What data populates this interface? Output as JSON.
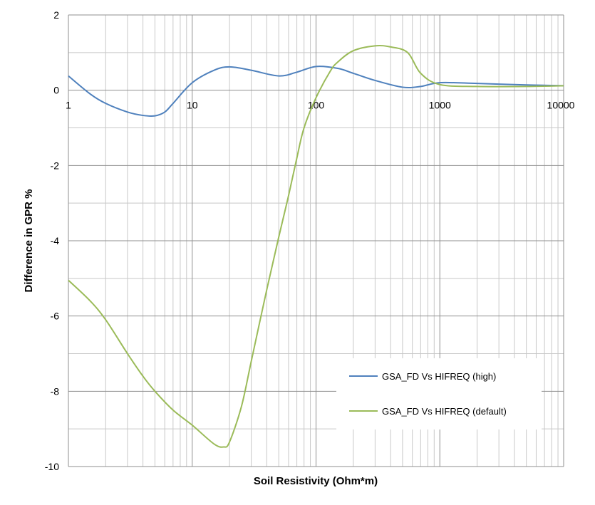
{
  "chart_data": {
    "type": "line",
    "title": "",
    "xlabel": "Soil Resistivity (Ohm*m)",
    "ylabel": "Difference in GPR %",
    "x_scale": "log",
    "xlim": [
      1,
      10000
    ],
    "ylim": [
      -10,
      2
    ],
    "x_ticks": [
      1,
      10,
      100,
      1000,
      10000
    ],
    "x_tick_labels": [
      "1",
      "10",
      "100",
      "1000",
      "10000"
    ],
    "y_ticks": [
      2,
      0,
      -2,
      -4,
      -6,
      -8,
      -10
    ],
    "y_tick_labels": [
      "2",
      "0",
      "-2",
      "-4",
      "-6",
      "-8",
      "-10"
    ],
    "grid": true,
    "legend_position": "bottom-right",
    "series": [
      {
        "name": "GSA_FD Vs HIFREQ (high)",
        "color": "#4f81bd",
        "x": [
          1,
          1.5,
          2,
          3,
          4,
          5,
          6,
          7,
          10,
          15,
          20,
          30,
          50,
          70,
          100,
          150,
          200,
          300,
          500,
          700,
          1000,
          2000,
          5000,
          10000
        ],
        "y": [
          0.38,
          -0.1,
          -0.35,
          -0.58,
          -0.67,
          -0.68,
          -0.58,
          -0.35,
          0.2,
          0.53,
          0.62,
          0.53,
          0.38,
          0.48,
          0.63,
          0.58,
          0.45,
          0.26,
          0.08,
          0.1,
          0.2,
          0.18,
          0.14,
          0.12
        ]
      },
      {
        "name": "GSA_FD Vs HIFREQ (default)",
        "color": "#9bbb59",
        "x": [
          1,
          1.5,
          2,
          3,
          4,
          5,
          7,
          10,
          15,
          18,
          20,
          25,
          30,
          40,
          50,
          60,
          70,
          80,
          100,
          130,
          150,
          200,
          300,
          400,
          550,
          700,
          1000,
          2000,
          5000,
          10000
        ],
        "y": [
          -5.05,
          -5.6,
          -6.1,
          -7.0,
          -7.6,
          -8.0,
          -8.5,
          -8.9,
          -9.4,
          -9.48,
          -9.35,
          -8.4,
          -7.2,
          -5.3,
          -3.9,
          -2.8,
          -1.8,
          -1.0,
          -0.2,
          0.5,
          0.75,
          1.05,
          1.18,
          1.15,
          1.0,
          0.45,
          0.15,
          0.1,
          0.1,
          0.12
        ]
      }
    ]
  }
}
